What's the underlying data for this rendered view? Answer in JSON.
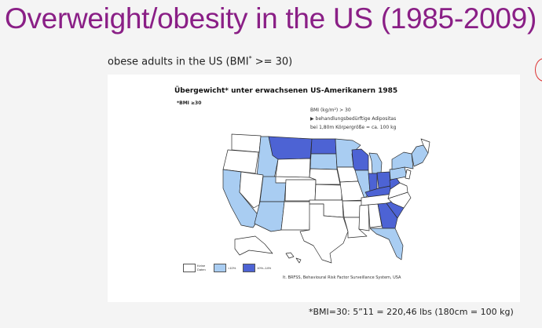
{
  "slide": {
    "title": "Overweight/obesity in the US (1985-2009)",
    "subtitle_text": "obese adults in the US (BMI",
    "subtitle_sup": "*",
    "subtitle_end": " >= 30)",
    "footnote": "*BMI=30: 5”11 = 220,46 lbs (180cm = 100 kg)"
  },
  "figure": {
    "title": "Übergewicht* unter erwachsenen US-Amerikanern 1985",
    "note": "*BMI ≥30",
    "legend_lines": [
      "BMI (kg/m²) > 30",
      "▶  behandlungsbedürftige Adipositas",
      "bei 1,80m Körpergröße = ca. 100 kg"
    ],
    "legend_items": [
      {
        "label": "Keine Daten",
        "color": "#ffffff"
      },
      {
        "label": "<10%",
        "color": "#a9cdf2"
      },
      {
        "label": "10%–14%",
        "color": "#4d63d4"
      }
    ],
    "source": "lt. BRFSS, Behavioural Risk Factor Surveillance System, USA"
  },
  "colors": {
    "title": "#8a1f86",
    "no_data": "#ffffff",
    "low": "#a9cdf2",
    "high": "#4d63d4",
    "border": "#2a2a2a"
  }
}
